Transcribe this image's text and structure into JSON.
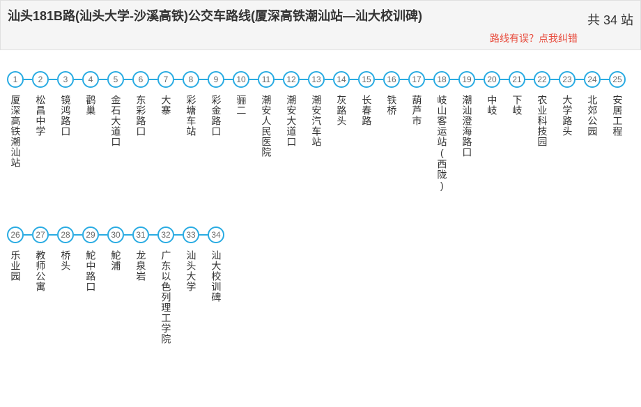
{
  "header": {
    "title": "汕头181B路(汕头大学-沙溪高铁)公交车路线(厦深高铁潮汕站—汕大校训碑)",
    "total_label": "共 34 站",
    "error_link": "路线有误？点我纠错"
  },
  "style": {
    "circle_border_color": "#29abe2",
    "circle_bg": "#ffffff",
    "circle_number_color": "#6b6b6b",
    "connector_color": "#29abe2",
    "title_color": "#333333",
    "label_color": "#333333",
    "error_color": "#e84c3d",
    "header_bg": "#f5f5f5",
    "header_border": "#e0e0e0",
    "title_fontsize": 18,
    "label_fontsize": 14,
    "circle_size": 24,
    "circle_border_width": 2,
    "connector_width": 12,
    "stops_per_row": 25
  },
  "stops": [
    "厦深高铁潮汕站",
    "松昌中学",
    "镜鸿路口",
    "鹳巢",
    "金石大道口",
    "东彩路口",
    "大寨",
    "彩塘车站",
    "彩金路口",
    "骊二",
    "潮安人民医院",
    "潮安大道口",
    "潮安汽车站",
    "灰路头",
    "长春路",
    "铁桥",
    "葫芦市",
    "岐山客运站(西陇)",
    "潮汕澄海路口",
    "中岐",
    "下岐",
    "农业科技园",
    "大学路头",
    "北郊公园",
    "安居工程",
    "乐业园",
    "教师公寓",
    "桥头",
    "鮀中路口",
    "鮀浦",
    "龙泉岩",
    "广东以色列理工学院",
    "汕头大学",
    "汕大校训碑"
  ]
}
